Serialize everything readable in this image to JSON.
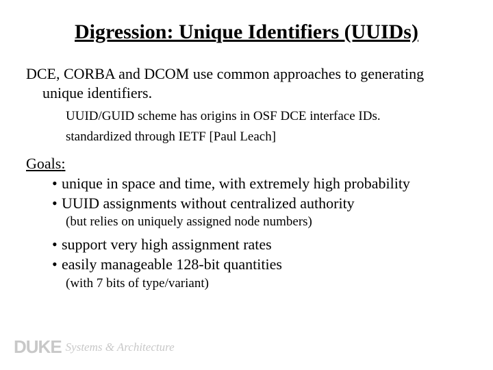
{
  "title": "Digression: Unique Identifiers (UUIDs)",
  "intro": "DCE, CORBA and DCOM use common approaches to generating unique identifiers.",
  "sub1": "UUID/GUID scheme has origins in OSF DCE interface IDs.",
  "sub2": "standardized through IETF [Paul Leach]",
  "goals_label": "Goals",
  "goal_bullets": {
    "b1": "unique in space and time, with extremely high probability",
    "b2": "UUID assignments without centralized authority",
    "b2_note": "(but relies on uniquely assigned node numbers)",
    "b3": "support very high assignment rates",
    "b4": "easily manageable 128-bit quantities",
    "b4_note": "(with 7 bits of type/variant)"
  },
  "footer": {
    "duke": "DUKE",
    "sysarch": "Systems & Architecture"
  },
  "colors": {
    "text": "#000000",
    "background": "#ffffff",
    "footer_gray": "#c8c8c8"
  },
  "typography": {
    "title_fontsize": 30,
    "body_fontsize": 22,
    "sub_fontsize": 19,
    "font_family": "Georgia, Times New Roman, serif"
  }
}
